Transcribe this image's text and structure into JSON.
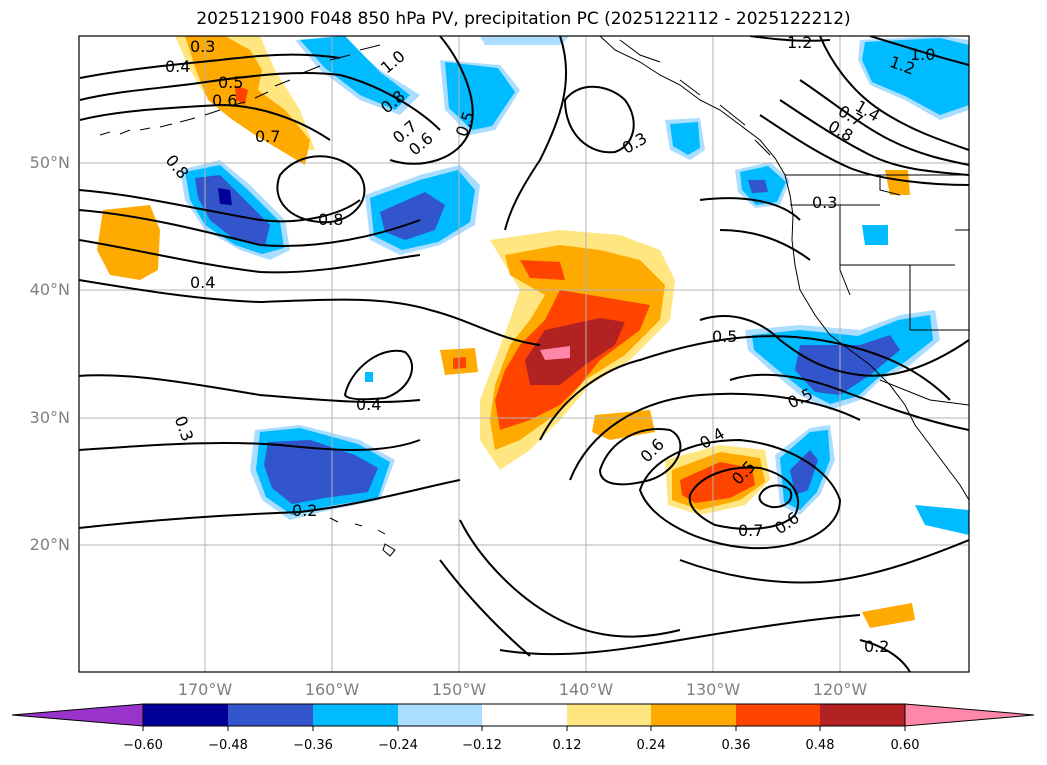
{
  "title": "2025121900 F048 850 hPa PV, precipitation PC (2025122112 - 2025122212)",
  "lat_labels": [
    "50°N",
    "40°N",
    "30°N",
    "20°N"
  ],
  "lon_labels": [
    "170°W",
    "160°W",
    "150°W",
    "140°W",
    "130°W",
    "120°W"
  ],
  "colorbar": {
    "ticks": [
      "−0.60",
      "−0.48",
      "−0.36",
      "−0.24",
      "−0.12",
      "0.12",
      "0.24",
      "0.36",
      "0.48",
      "0.60"
    ],
    "colors": [
      "#9933cc",
      "#000099",
      "#3355cc",
      "#00bbff",
      "#aaddff",
      "#ffffff",
      "#ffe680",
      "#ffaa00",
      "#ff4400",
      "#b22222",
      "#ff88aa"
    ]
  },
  "contour_labels": [
    "0.3",
    "0.4",
    "0.5",
    "0.6",
    "0.7",
    "0.8",
    "0.8",
    "1.0",
    "0.8",
    "0.7",
    "0.6",
    "0.5",
    "0.3",
    "1.2",
    "1.2",
    "1.0",
    "1.4",
    "0.3",
    "0.4",
    "0.5",
    "0.5",
    "0.6",
    "0.4",
    "0.5",
    "0.7",
    "0.6",
    "0.2",
    "0.3",
    "0.4",
    "0.2",
    "0.8",
    "0.7"
  ]
}
